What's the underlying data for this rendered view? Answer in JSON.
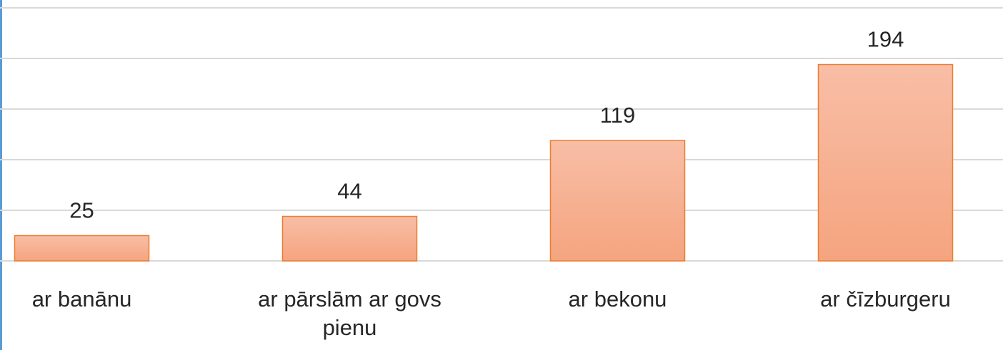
{
  "chart_data": {
    "type": "bar",
    "categories": [
      "ar banānu",
      "ar pārslām ar govs pienu",
      "ar bekonu",
      "ar čīzburgeru"
    ],
    "values": [
      25,
      44,
      119,
      194
    ],
    "color": "#ed7d31",
    "ylim": [
      0,
      250
    ],
    "yticks": [
      0,
      50,
      100,
      150,
      200,
      250
    ],
    "grid": true
  }
}
